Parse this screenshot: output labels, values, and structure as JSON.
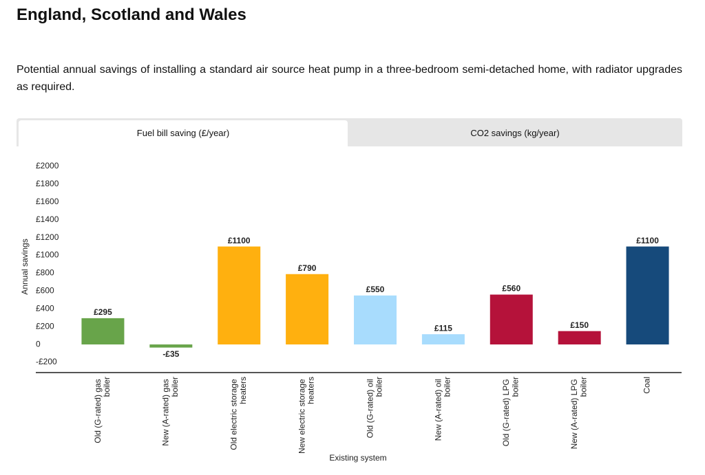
{
  "header": {
    "title": "England, Scotland and Wales",
    "description": "Potential annual savings of installing a standard air source heat pump in a three-bedroom semi-detached home, with radiator upgrades as required."
  },
  "tabs": [
    "Fuel bill saving (£/year)",
    "CO2 savings (kg/year)"
  ],
  "chart_data": {
    "type": "bar",
    "y_label": "Annual savings",
    "x_label": "Existing system",
    "categories": [
      "Old (G-rated) gas boiler",
      "New (A-rated) gas boiler",
      "Old electric storage heaters",
      "New electric storage heaters",
      "Old (G-rated) oil boiler",
      "New (A-rated) oil boiler",
      "Old (G-rated) LPG boiler",
      "New (A-rated) LPG boiler",
      "Coal"
    ],
    "values": [
      295,
      -35,
      1100,
      790,
      550,
      115,
      560,
      150,
      1100
    ],
    "value_labels": [
      "£295",
      "-£35",
      "£1100",
      "£790",
      "£550",
      "£115",
      "£560",
      "£150",
      "£1100"
    ],
    "colors": [
      "#68a44a",
      "#68a44a",
      "#ffb00f",
      "#ffb00f",
      "#a8dcfd",
      "#a8dcfd",
      "#b5123a",
      "#b5123a",
      "#164a7b"
    ],
    "ylim": [
      -200,
      2000
    ],
    "yticks": [
      {
        "value": -200,
        "label": "-£200"
      },
      0,
      {
        "value": 200,
        "label": "£200"
      },
      {
        "value": 400,
        "label": "£400"
      },
      {
        "value": 600,
        "label": "£600"
      },
      {
        "value": 800,
        "label": "£800"
      },
      {
        "value": 1000,
        "label": "£1000"
      },
      {
        "value": 1200,
        "label": "£1200"
      },
      {
        "value": 1400,
        "label": "£1400"
      },
      {
        "value": 1600,
        "label": "£1600"
      },
      {
        "value": 1800,
        "label": "£1800"
      },
      {
        "value": 2000,
        "label": "£2000"
      }
    ]
  }
}
